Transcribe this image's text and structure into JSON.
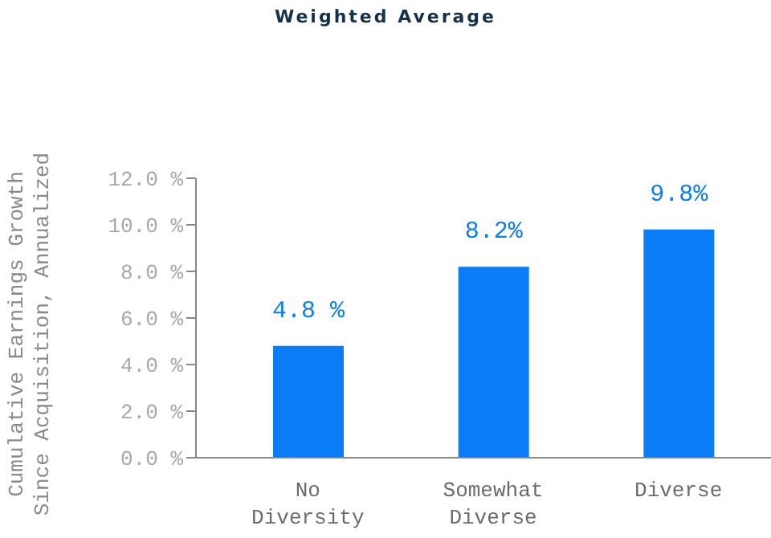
{
  "chart_data": {
    "type": "bar",
    "title": "Weighted Average",
    "ylabel": "Cumulative Earnings Growth\nSince Acquisition, Annualized",
    "categories": [
      "No Diversity",
      "Somewhat Diverse",
      "Diverse"
    ],
    "values": [
      4.8,
      8.2,
      9.8
    ],
    "color": "#0a7cf5",
    "value_labels": [
      "4.8 %",
      "8.2%",
      "9.8%"
    ],
    "ylim": [
      0,
      12
    ],
    "yticks": [
      {
        "value": 0,
        "label": "0.0 %"
      },
      {
        "value": 2,
        "label": "2.0 %"
      },
      {
        "value": 4,
        "label": "4.0 %"
      },
      {
        "value": 6,
        "label": "6.0 %"
      },
      {
        "value": 8,
        "label": "8.0 %"
      },
      {
        "value": 10,
        "label": "10.0 %"
      },
      {
        "value": 12,
        "label": "12.0 %"
      }
    ],
    "grid": false,
    "legend": false
  }
}
